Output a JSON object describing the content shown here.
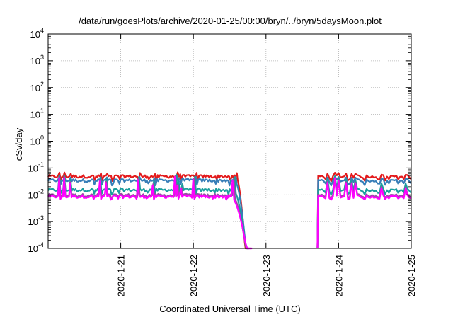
{
  "chart_data": {
    "type": "line",
    "title": "/data/run/goesPlots/archive/2020-01-25/00:00/bryn/../bryn/5daysMoon.plot",
    "xlabel": "Coordinated Universal Time (UTC)",
    "ylabel": "cSv/day",
    "y_scale": "log",
    "ylim": [
      0.0001,
      10000
    ],
    "y_ticks": [
      {
        "base": "10",
        "exp": "-4",
        "value": 0.0001
      },
      {
        "base": "10",
        "exp": "-3",
        "value": 0.001
      },
      {
        "base": "10",
        "exp": "-2",
        "value": 0.01
      },
      {
        "base": "10",
        "exp": "-1",
        "value": 0.1
      },
      {
        "base": "10",
        "exp": "0",
        "value": 1
      },
      {
        "base": "10",
        "exp": "1",
        "value": 10
      },
      {
        "base": "10",
        "exp": "2",
        "value": 100
      },
      {
        "base": "10",
        "exp": "3",
        "value": 1000
      },
      {
        "base": "10",
        "exp": "4",
        "value": 10000
      }
    ],
    "xlim": [
      "2020-01-20T00:00",
      "2020-01-25T00:00"
    ],
    "x_ticks": [
      "2020-1-21",
      "2020-1-22",
      "2020-1-23",
      "2020-1-24",
      "2020-1-25"
    ],
    "grid": true,
    "data_gap": [
      "2020-01-22T17:30",
      "2020-01-23T17:00"
    ],
    "series": [
      {
        "color": "#e41a1c",
        "level": 0.048,
        "spike_max": 0.095,
        "dip_min": 0.032
      },
      {
        "color": "#377eb8",
        "level": 0.034,
        "spike_max": 0.07,
        "dip_min": 0.022
      },
      {
        "color": "#1b9e9e",
        "level": 0.015,
        "spike_max": 0.06,
        "dip_min": 0.01
      },
      {
        "color": "#984ea3",
        "level": 0.0095,
        "spike_max": 0.055,
        "dip_min": 0.0075
      },
      {
        "color": "#ff00ff",
        "level": 0.0085,
        "spike_max": 0.05,
        "dip_min": 0.0065
      }
    ]
  }
}
